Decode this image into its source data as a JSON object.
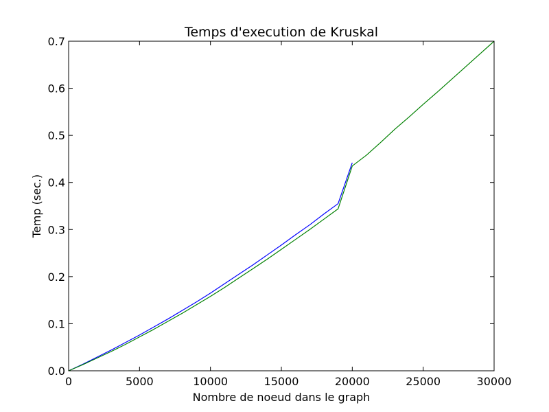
{
  "chart_data": {
    "type": "line",
    "title": "Temps d'execution de Kruskal",
    "xlabel": "Nombre de noeud dans le graph",
    "ylabel": "Temp (sec.)",
    "xlim": [
      0,
      30000
    ],
    "ylim": [
      0,
      0.7
    ],
    "x_ticks": [
      "0",
      "5000",
      "10000",
      "15000",
      "20000",
      "25000",
      "30000"
    ],
    "y_ticks": [
      "0.0",
      "0.1",
      "0.2",
      "0.3",
      "0.4",
      "0.5",
      "0.6",
      "0.7"
    ],
    "grid": false,
    "legend": "none",
    "series": [
      {
        "color": "#0000ff",
        "x": [
          0,
          1000,
          2000,
          3000,
          4000,
          5000,
          6000,
          7000,
          8000,
          9000,
          10000,
          11000,
          12000,
          13000,
          14000,
          15000,
          16000,
          17000,
          18000,
          19000,
          20000
        ],
        "y": [
          0.0,
          0.014,
          0.029,
          0.044,
          0.06,
          0.076,
          0.093,
          0.11,
          0.128,
          0.146,
          0.165,
          0.185,
          0.205,
          0.225,
          0.246,
          0.267,
          0.289,
          0.31,
          0.333,
          0.355,
          0.442
        ]
      },
      {
        "color": "#008000",
        "x": [
          0,
          1000,
          2000,
          3000,
          4000,
          5000,
          6000,
          7000,
          8000,
          9000,
          10000,
          11000,
          12000,
          13000,
          14000,
          15000,
          16000,
          17000,
          18000,
          19000,
          20000,
          21000,
          22000,
          23000,
          24000,
          25000,
          26000,
          27000,
          28000,
          29000,
          30000
        ],
        "y": [
          0.0,
          0.013,
          0.027,
          0.041,
          0.056,
          0.072,
          0.088,
          0.105,
          0.122,
          0.14,
          0.158,
          0.177,
          0.197,
          0.217,
          0.237,
          0.258,
          0.279,
          0.3,
          0.322,
          0.344,
          0.435,
          0.458,
          0.485,
          0.513,
          0.539,
          0.566,
          0.592,
          0.619,
          0.646,
          0.673,
          0.7
        ]
      }
    ]
  }
}
